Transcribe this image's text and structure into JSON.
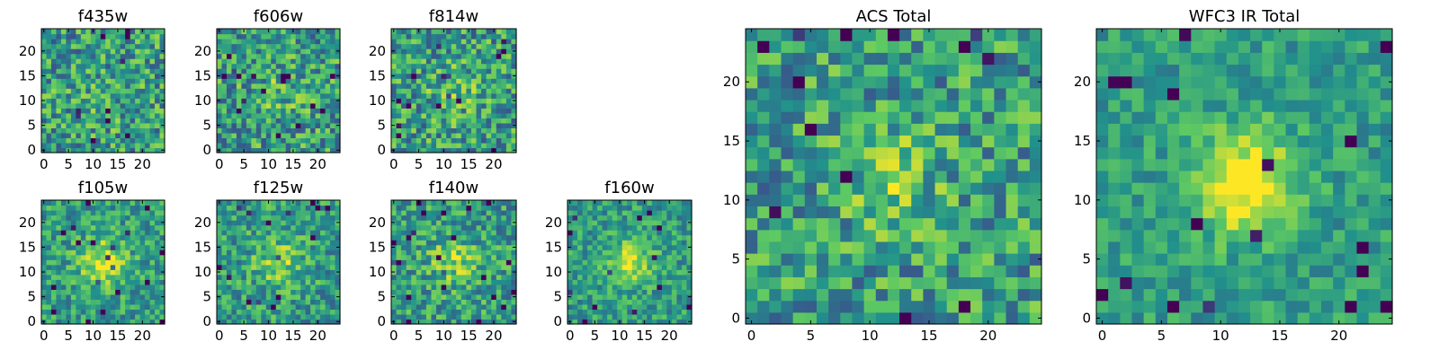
{
  "chart_data": {
    "type": "heatmap",
    "colormap": [
      "#440154",
      "#3b528b",
      "#21918c",
      "#5ec962",
      "#fde725"
    ],
    "panels": [
      {
        "id": "f435w",
        "title": "f435w",
        "grid": [
          25,
          25
        ],
        "xlim": [
          0,
          24
        ],
        "ylim": [
          0,
          24
        ],
        "xticks": [
          "0",
          "5",
          "10",
          "15",
          "20"
        ],
        "yticks": [
          "0",
          "5",
          "10",
          "15",
          "20"
        ],
        "seed": 11,
        "blob": {
          "cx": 12,
          "cy": 11,
          "sigma": 4,
          "amp": 0.05
        },
        "noise": 0.3
      },
      {
        "id": "f606w",
        "title": "f606w",
        "grid": [
          25,
          25
        ],
        "xlim": [
          0,
          24
        ],
        "ylim": [
          0,
          24
        ],
        "xticks": [
          "0",
          "5",
          "10",
          "15",
          "20"
        ],
        "yticks": [
          "0",
          "5",
          "10",
          "15",
          "20"
        ],
        "seed": 23,
        "blob": {
          "cx": 13,
          "cy": 12,
          "sigma": 3.5,
          "amp": 0.12
        },
        "noise": 0.3
      },
      {
        "id": "f814w",
        "title": "f814w",
        "grid": [
          25,
          25
        ],
        "xlim": [
          0,
          24
        ],
        "ylim": [
          0,
          24
        ],
        "xticks": [
          "0",
          "5",
          "10",
          "15",
          "20"
        ],
        "yticks": [
          "0",
          "5",
          "10",
          "15",
          "20"
        ],
        "seed": 37,
        "blob": {
          "cx": 12,
          "cy": 12,
          "sigma": 3.5,
          "amp": 0.15
        },
        "noise": 0.3
      },
      {
        "id": "f105w",
        "title": "f105w",
        "grid": [
          25,
          25
        ],
        "xlim": [
          0,
          24
        ],
        "ylim": [
          0,
          24
        ],
        "xticks": [
          "0",
          "5",
          "10",
          "15",
          "20"
        ],
        "yticks": [
          "0",
          "5",
          "10",
          "15",
          "20"
        ],
        "seed": 41,
        "blob": {
          "cx": 12,
          "cy": 12,
          "sigma": 3.5,
          "amp": 0.35
        },
        "noise": 0.22
      },
      {
        "id": "f125w",
        "title": "f125w",
        "grid": [
          25,
          25
        ],
        "xlim": [
          0,
          24
        ],
        "ylim": [
          0,
          24
        ],
        "xticks": [
          "0",
          "5",
          "10",
          "15",
          "20"
        ],
        "yticks": [
          "0",
          "5",
          "10",
          "15",
          "20"
        ],
        "seed": 53,
        "blob": {
          "cx": 12,
          "cy": 12,
          "sigma": 3.5,
          "amp": 0.25
        },
        "noise": 0.24
      },
      {
        "id": "f140w",
        "title": "f140w",
        "grid": [
          25,
          25
        ],
        "xlim": [
          0,
          24
        ],
        "ylim": [
          0,
          24
        ],
        "xticks": [
          "0",
          "5",
          "10",
          "15",
          "20"
        ],
        "yticks": [
          "0",
          "5",
          "10",
          "15",
          "20"
        ],
        "seed": 67,
        "blob": {
          "cx": 12,
          "cy": 12,
          "sigma": 3.5,
          "amp": 0.25
        },
        "noise": 0.25
      },
      {
        "id": "f160w",
        "title": "f160w",
        "grid": [
          25,
          25
        ],
        "xlim": [
          0,
          24
        ],
        "ylim": [
          0,
          24
        ],
        "xticks": [
          "0",
          "5",
          "10",
          "15",
          "20"
        ],
        "yticks": [
          "0",
          "5",
          "10",
          "15",
          "20"
        ],
        "seed": 79,
        "blob": {
          "cx": 12,
          "cy": 12,
          "sigma": 3,
          "amp": 0.4
        },
        "noise": 0.2
      },
      {
        "id": "acs-total",
        "title": "ACS Total",
        "grid": [
          25,
          25
        ],
        "xlim": [
          0,
          24
        ],
        "ylim": [
          0,
          24
        ],
        "xticks": [
          "0",
          "5",
          "10",
          "15",
          "20"
        ],
        "yticks": [
          "0",
          "5",
          "10",
          "15",
          "20"
        ],
        "seed": 97,
        "blob": {
          "cx": 12,
          "cy": 11.5,
          "sigma": 3,
          "amp": 0.2
        },
        "noise": 0.28
      },
      {
        "id": "wfc3-ir-total",
        "title": "WFC3 IR Total",
        "grid": [
          25,
          25
        ],
        "xlim": [
          0,
          24
        ],
        "ylim": [
          0,
          24
        ],
        "xticks": [
          "0",
          "5",
          "10",
          "15",
          "20"
        ],
        "yticks": [
          "0",
          "5",
          "10",
          "15",
          "20"
        ],
        "seed": 113,
        "blob": {
          "cx": 12,
          "cy": 11.5,
          "sigma": 3,
          "amp": 0.55
        },
        "noise": 0.16
      }
    ]
  }
}
